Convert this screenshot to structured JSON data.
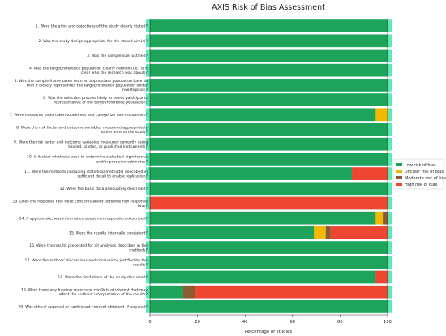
{
  "chart_data": {
    "type": "bar",
    "orientation": "horizontal",
    "stacked": true,
    "title": "AXIS Risk of Bias Assessment",
    "xlabel": "Percentage of studies",
    "ylabel": "",
    "xlim": [
      0,
      100
    ],
    "xticks": [
      0,
      20,
      40,
      60,
      80,
      100
    ],
    "legend_position": "right",
    "categories": [
      [
        "1. Were the aims and objectives of the study clearly stated?"
      ],
      [
        "2. Was the study design appropriate for the stated aim(s)?"
      ],
      [
        "3. Was the sample size justified?"
      ],
      [
        "4. Was the target/reference population clearly defined (i.e., is it",
        "clear who the research was about)?"
      ],
      [
        "5. Was the sample frame taken from an appropriate population base so",
        "that it closely represented the target/reference population under",
        "investigation?"
      ],
      [
        "6. Was the selection process likely to select participants",
        "representative of the target/reference population?"
      ],
      [
        "7. Were measures undertaken to address and categorize non-responders?"
      ],
      [
        "8. Were the risk factor and outcome variables measured appropriately",
        "to the aims of the study?"
      ],
      [
        "9. Were the risk factor and outcome variables measured correctly using",
        "trialled, piloted, or published instruments?"
      ],
      [
        "10. Is it clear what was used to determine statistical significance",
        "and/or precision estimates?"
      ],
      [
        "11. Were the methods (including statistical methods) described in",
        "sufficient detail to enable replication?"
      ],
      [
        "12. Were the basic data adequately described?"
      ],
      [
        "13. Does the response rate raise concerns about potential non-response",
        "bias?"
      ],
      [
        "14. If appropriate, was information about non-responders described?"
      ],
      [
        "15. Were the results internally consistent?"
      ],
      [
        "16. Were the results presented for all analyses described in the",
        "methods?"
      ],
      [
        "17. Were the authors' discussions and conclusions justified by the",
        "results?"
      ],
      [
        "18. Were the limitations of the study discussed?"
      ],
      [
        "19. Were there any funding sources or conflicts of interest that may",
        "affect the authors' interpretation of the results?"
      ],
      [
        "20. Was ethical approval or participant consent obtained, if required?"
      ]
    ],
    "series": [
      {
        "name": "Low risk of bias",
        "color": "#1ea35a",
        "values": [
          100,
          100,
          100,
          100,
          100,
          100,
          95,
          100,
          100,
          100,
          85,
          100,
          0,
          95,
          69,
          100,
          100,
          95,
          14,
          100
        ]
      },
      {
        "name": "Unclear risk of bias",
        "color": "#f5b800",
        "values": [
          0,
          0,
          0,
          0,
          0,
          0,
          5,
          0,
          0,
          0,
          0,
          0,
          0,
          3,
          5,
          0,
          0,
          0,
          0,
          0
        ]
      },
      {
        "name": "Moderate risk of bias",
        "color": "#8c5a33",
        "values": [
          0,
          0,
          0,
          0,
          0,
          0,
          0,
          0,
          0,
          0,
          0,
          0,
          0,
          2,
          2,
          0,
          0,
          0,
          5,
          0
        ]
      },
      {
        "name": "High risk of bias",
        "color": "#ef4632",
        "values": [
          0,
          0,
          0,
          0,
          0,
          0,
          0,
          0,
          0,
          0,
          15,
          0,
          100,
          0,
          24,
          0,
          0,
          5,
          81,
          0
        ]
      }
    ],
    "highlight_color": "#5de8b8",
    "grid": false
  }
}
